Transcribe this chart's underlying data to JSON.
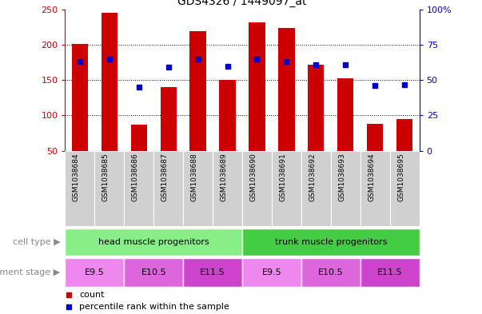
{
  "title": "GDS4326 / 1449097_at",
  "samples": [
    "GSM1038684",
    "GSM1038685",
    "GSM1038686",
    "GSM1038687",
    "GSM1038688",
    "GSM1038689",
    "GSM1038690",
    "GSM1038691",
    "GSM1038692",
    "GSM1038693",
    "GSM1038694",
    "GSM1038695"
  ],
  "counts": [
    201,
    245,
    87,
    140,
    219,
    150,
    232,
    224,
    172,
    152,
    88,
    95
  ],
  "percentiles": [
    63,
    65,
    45,
    59,
    65,
    60,
    65,
    63,
    61,
    61,
    46,
    47
  ],
  "ymin": 50,
  "ymax": 250,
  "yticks_left": [
    50,
    100,
    150,
    200,
    250
  ],
  "yticks_right": [
    0,
    25,
    50,
    75,
    100
  ],
  "bar_color": "#cc0000",
  "dot_color": "#0000cc",
  "cell_type_groups": [
    {
      "label": "head muscle progenitors",
      "start": 0,
      "end": 5,
      "color": "#88ee88"
    },
    {
      "label": "trunk muscle progenitors",
      "start": 6,
      "end": 11,
      "color": "#44cc44"
    }
  ],
  "dev_stage_groups": [
    {
      "label": "E9.5",
      "start": 0,
      "end": 1,
      "color": "#ee88ee"
    },
    {
      "label": "E10.5",
      "start": 2,
      "end": 3,
      "color": "#dd66dd"
    },
    {
      "label": "E11.5",
      "start": 4,
      "end": 5,
      "color": "#cc44cc"
    },
    {
      "label": "E9.5",
      "start": 6,
      "end": 7,
      "color": "#ee88ee"
    },
    {
      "label": "E10.5",
      "start": 8,
      "end": 9,
      "color": "#dd66dd"
    },
    {
      "label": "E11.5",
      "start": 10,
      "end": 11,
      "color": "#cc44cc"
    }
  ],
  "sample_bg_color": "#d0d0d0",
  "legend_count_label": "count",
  "legend_percentile_label": "percentile rank within the sample",
  "cell_type_label": "cell type",
  "dev_stage_label": "development stage",
  "label_arrow": "▶",
  "label_color": "#888888"
}
